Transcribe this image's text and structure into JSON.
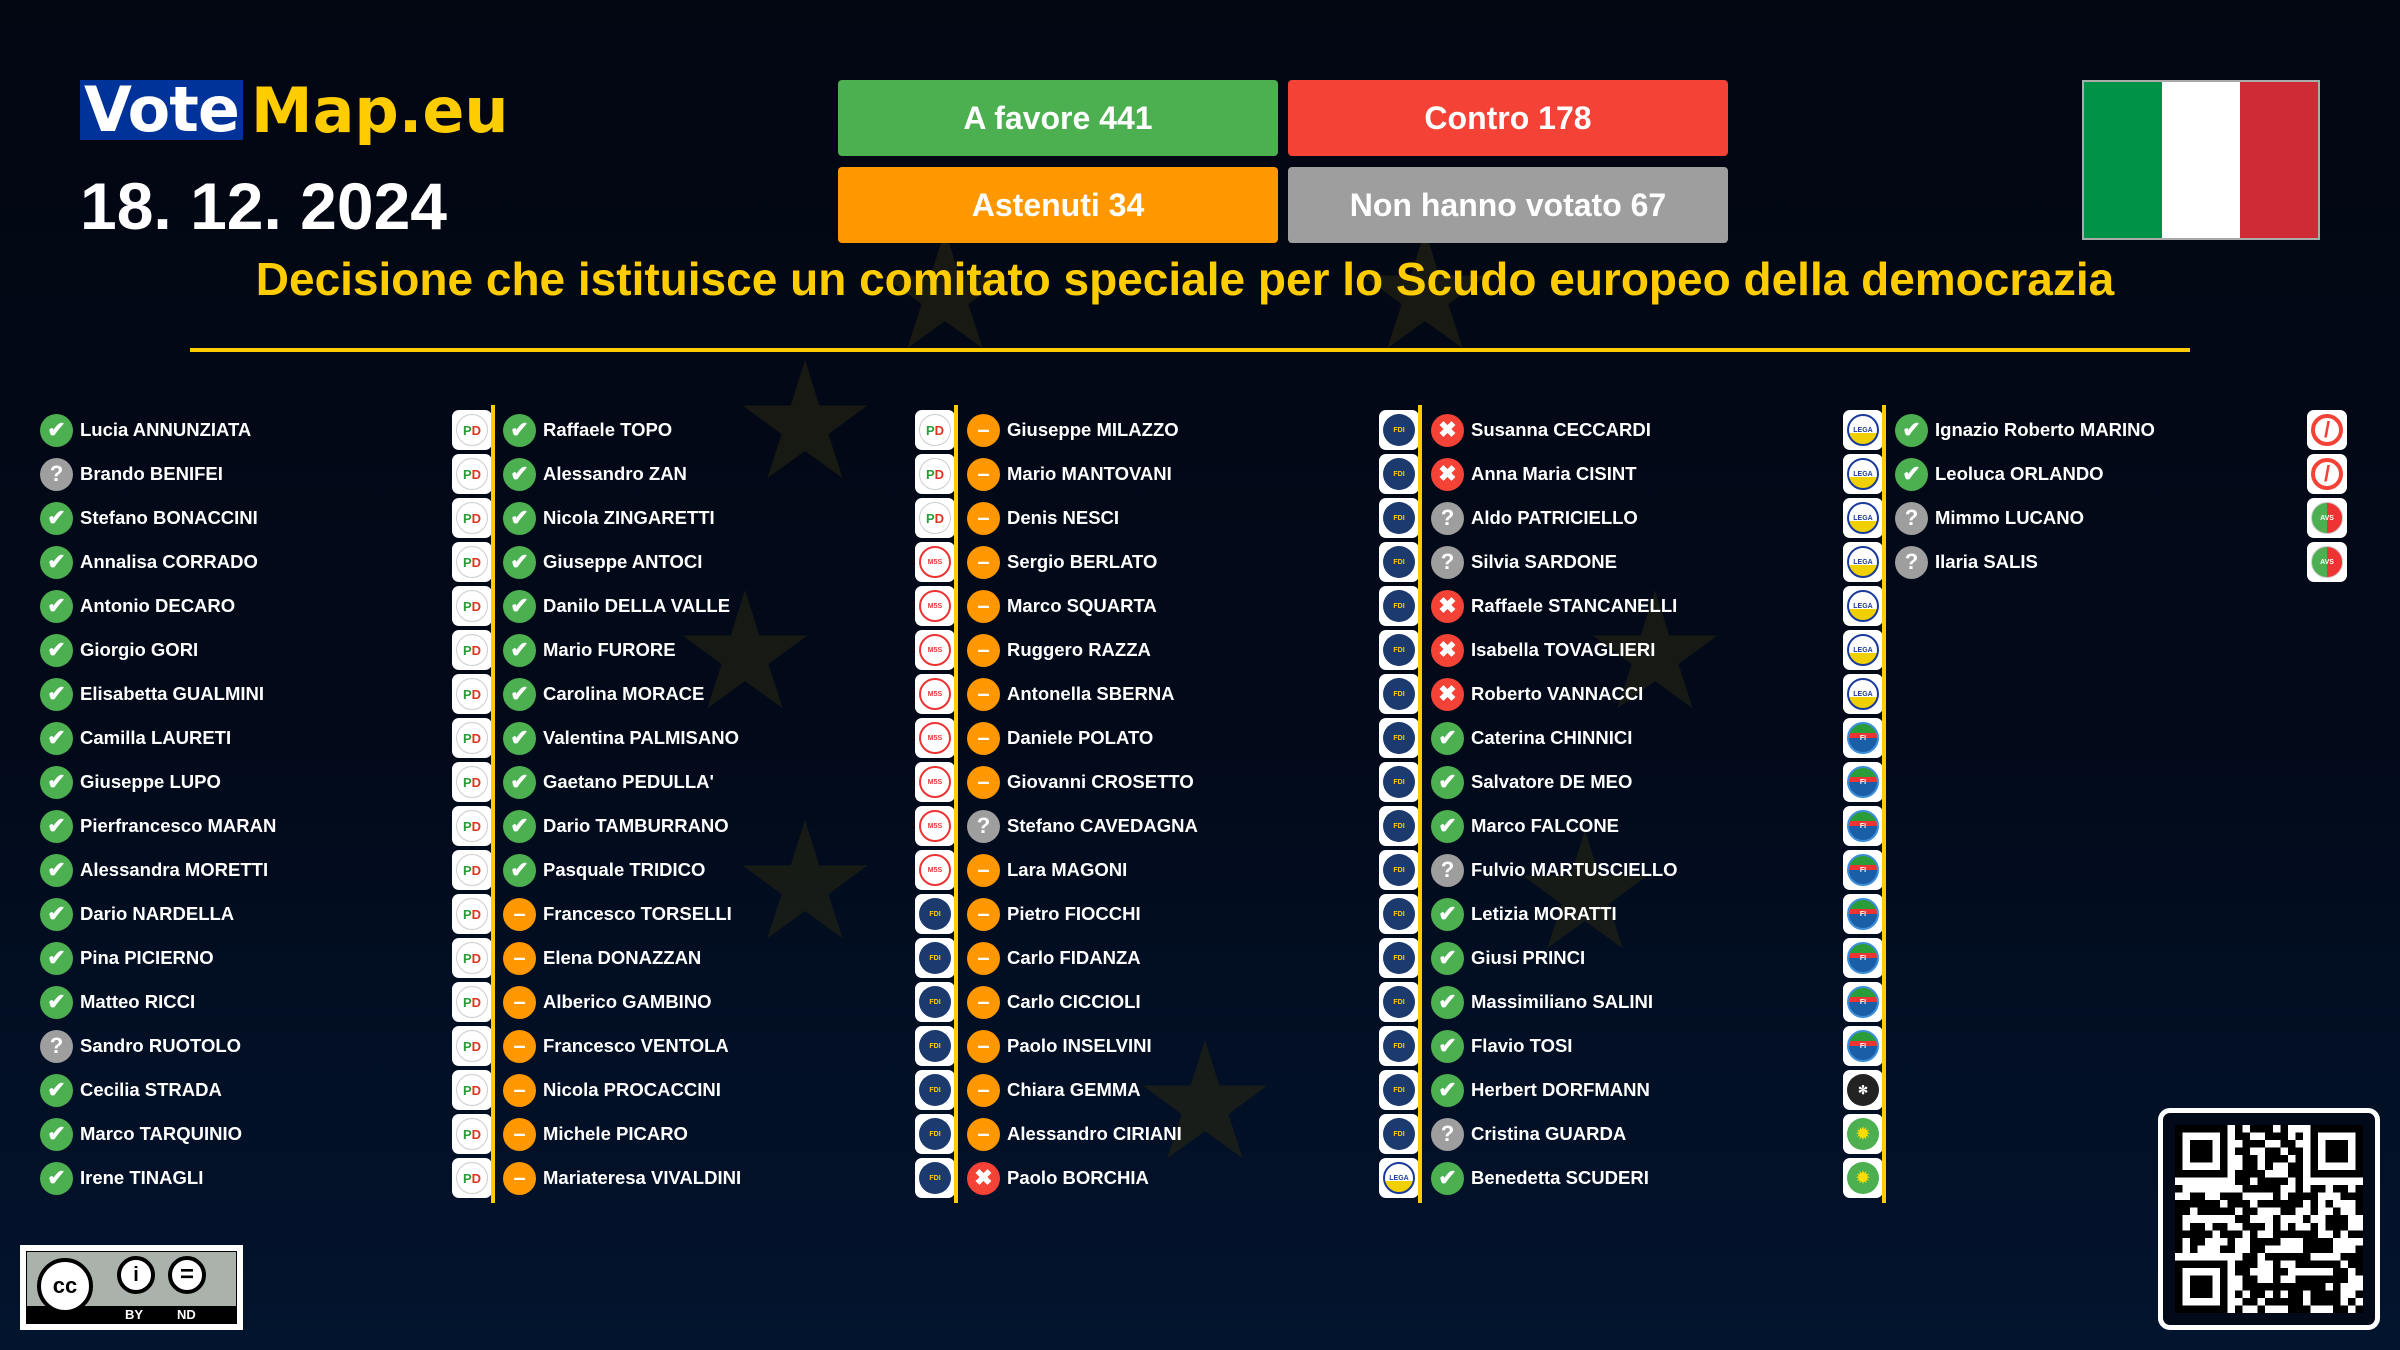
{
  "header": {
    "logo_vote": "Vote",
    "logo_map": "Map.eu",
    "date": "18. 12. 2024",
    "title": "Decisione che istituisce un comitato speciale per lo Scudo europeo della democrazia"
  },
  "tallies": {
    "favor": "A favore 441",
    "against": "Contro 178",
    "abstain": "Astenuti 34",
    "novote": "Non hanno votato 67"
  },
  "colors": {
    "favor": "#4caf50",
    "against": "#f44336",
    "abstain": "#ff9800",
    "novote": "#9e9e9e",
    "accent": "#ffcc00",
    "logo_blue": "#003399"
  },
  "flag": {
    "country": "Italy",
    "colors": [
      "#009246",
      "#ffffff",
      "#ce2b37"
    ]
  },
  "license": {
    "by": "BY",
    "nd": "ND"
  },
  "columns": [
    [
      [
        "Lucia ANNUNZIATA",
        "favor",
        "pd"
      ],
      [
        "Brando BENIFEI",
        "novote",
        "pd"
      ],
      [
        "Stefano BONACCINI",
        "favor",
        "pd"
      ],
      [
        "Annalisa CORRADO",
        "favor",
        "pd"
      ],
      [
        "Antonio DECARO",
        "favor",
        "pd"
      ],
      [
        "Giorgio GORI",
        "favor",
        "pd"
      ],
      [
        "Elisabetta GUALMINI",
        "favor",
        "pd"
      ],
      [
        "Camilla LAURETI",
        "favor",
        "pd"
      ],
      [
        "Giuseppe LUPO",
        "favor",
        "pd"
      ],
      [
        "Pierfrancesco MARAN",
        "favor",
        "pd"
      ],
      [
        "Alessandra MORETTI",
        "favor",
        "pd"
      ],
      [
        "Dario NARDELLA",
        "favor",
        "pd"
      ],
      [
        "Pina PICIERNO",
        "favor",
        "pd"
      ],
      [
        "Matteo RICCI",
        "favor",
        "pd"
      ],
      [
        "Sandro RUOTOLO",
        "novote",
        "pd"
      ],
      [
        "Cecilia STRADA",
        "favor",
        "pd"
      ],
      [
        "Marco TARQUINIO",
        "favor",
        "pd"
      ],
      [
        "Irene TINAGLI",
        "favor",
        "pd"
      ]
    ],
    [
      [
        "Raffaele TOPO",
        "favor",
        "pd"
      ],
      [
        "Alessandro ZAN",
        "favor",
        "pd"
      ],
      [
        "Nicola ZINGARETTI",
        "favor",
        "pd"
      ],
      [
        "Giuseppe ANTOCI",
        "favor",
        "m5s"
      ],
      [
        "Danilo DELLA VALLE",
        "favor",
        "m5s"
      ],
      [
        "Mario FURORE",
        "favor",
        "m5s"
      ],
      [
        "Carolina MORACE",
        "favor",
        "m5s"
      ],
      [
        "Valentina PALMISANO",
        "favor",
        "m5s"
      ],
      [
        "Gaetano PEDULLA'",
        "favor",
        "m5s"
      ],
      [
        "Dario TAMBURRANO",
        "favor",
        "m5s"
      ],
      [
        "Pasquale TRIDICO",
        "favor",
        "m5s"
      ],
      [
        "Francesco TORSELLI",
        "abstain",
        "fdi"
      ],
      [
        "Elena DONAZZAN",
        "abstain",
        "fdi"
      ],
      [
        "Alberico GAMBINO",
        "abstain",
        "fdi"
      ],
      [
        "Francesco VENTOLA",
        "abstain",
        "fdi"
      ],
      [
        "Nicola PROCACCINI",
        "abstain",
        "fdi"
      ],
      [
        "Michele PICARO",
        "abstain",
        "fdi"
      ],
      [
        "Mariateresa VIVALDINI",
        "abstain",
        "fdi"
      ]
    ],
    [
      [
        "Giuseppe MILAZZO",
        "abstain",
        "fdi"
      ],
      [
        "Mario MANTOVANI",
        "abstain",
        "fdi"
      ],
      [
        "Denis NESCI",
        "abstain",
        "fdi"
      ],
      [
        "Sergio BERLATO",
        "abstain",
        "fdi"
      ],
      [
        "Marco SQUARTA",
        "abstain",
        "fdi"
      ],
      [
        "Ruggero RAZZA",
        "abstain",
        "fdi"
      ],
      [
        "Antonella SBERNA",
        "abstain",
        "fdi"
      ],
      [
        "Daniele POLATO",
        "abstain",
        "fdi"
      ],
      [
        "Giovanni CROSETTO",
        "abstain",
        "fdi"
      ],
      [
        "Stefano CAVEDAGNA",
        "novote",
        "fdi"
      ],
      [
        "Lara MAGONI",
        "abstain",
        "fdi"
      ],
      [
        "Pietro FIOCCHI",
        "abstain",
        "fdi"
      ],
      [
        "Carlo FIDANZA",
        "abstain",
        "fdi"
      ],
      [
        "Carlo CICCIOLI",
        "abstain",
        "fdi"
      ],
      [
        "Paolo INSELVINI",
        "abstain",
        "fdi"
      ],
      [
        "Chiara GEMMA",
        "abstain",
        "fdi"
      ],
      [
        "Alessandro CIRIANI",
        "abstain",
        "fdi"
      ],
      [
        "Paolo BORCHIA",
        "against",
        "lega"
      ]
    ],
    [
      [
        "Susanna CECCARDI",
        "against",
        "lega"
      ],
      [
        "Anna Maria CISINT",
        "against",
        "lega"
      ],
      [
        "Aldo PATRICIELLO",
        "novote",
        "lega"
      ],
      [
        "Silvia SARDONE",
        "novote",
        "lega"
      ],
      [
        "Raffaele STANCANELLI",
        "against",
        "lega"
      ],
      [
        "Isabella TOVAGLIERI",
        "against",
        "lega"
      ],
      [
        "Roberto VANNACCI",
        "against",
        "lega"
      ],
      [
        "Caterina CHINNICI",
        "favor",
        "fi"
      ],
      [
        "Salvatore DE MEO",
        "favor",
        "fi"
      ],
      [
        "Marco FALCONE",
        "favor",
        "fi"
      ],
      [
        "Fulvio MARTUSCIELLO",
        "novote",
        "fi"
      ],
      [
        "Letizia MORATTI",
        "favor",
        "fi"
      ],
      [
        "Giusi PRINCI",
        "favor",
        "fi"
      ],
      [
        "Massimiliano SALINI",
        "favor",
        "fi"
      ],
      [
        "Flavio TOSI",
        "favor",
        "fi"
      ],
      [
        "Herbert DORFMANN",
        "favor",
        "svp"
      ],
      [
        "Cristina GUARDA",
        "novote",
        "verdi"
      ],
      [
        "Benedetta SCUDERI",
        "favor",
        "verdi"
      ]
    ],
    [
      [
        "Ignazio Roberto MARINO",
        "favor",
        "none"
      ],
      [
        "Leoluca ORLANDO",
        "favor",
        "none"
      ],
      [
        "Mimmo LUCANO",
        "novote",
        "avs"
      ],
      [
        "Ilaria SALIS",
        "novote",
        "avs"
      ]
    ]
  ],
  "vote_icons": {
    "favor": "check-icon",
    "against": "cross-icon",
    "abstain": "minus-icon",
    "novote": "question-icon"
  }
}
